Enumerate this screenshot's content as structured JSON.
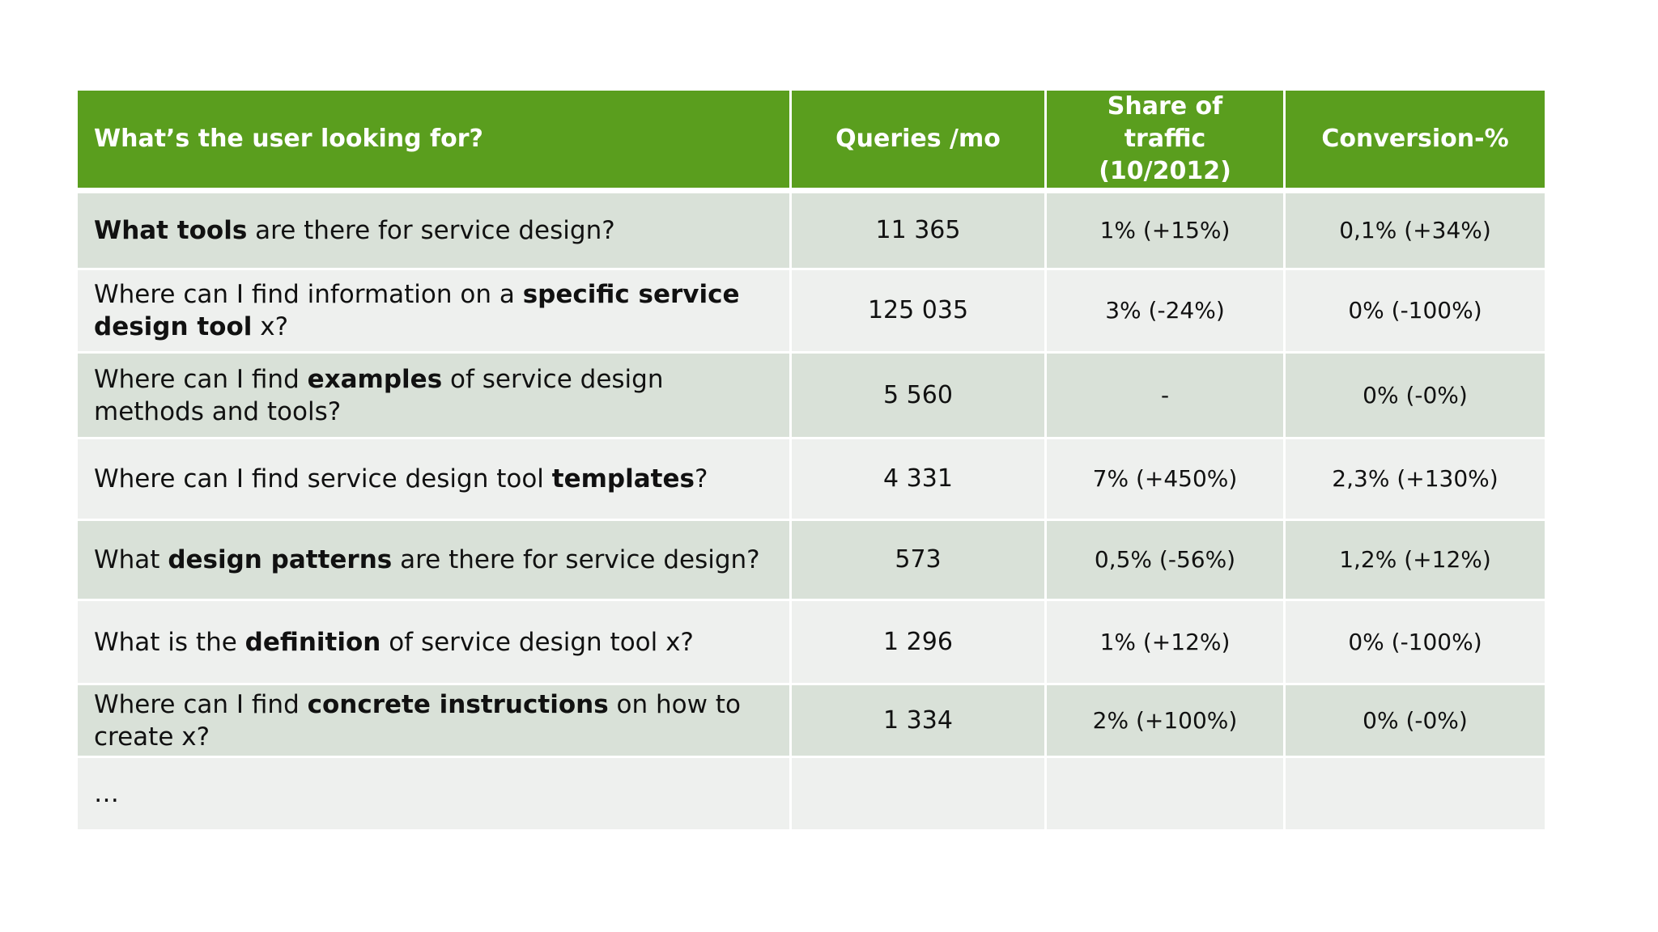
{
  "colors": {
    "header_bg": "#5a9e1e",
    "positive": "#4a9a16",
    "negative": "#e0101a",
    "row_dark": "#d9e1d8",
    "row_light": "#eef0ee"
  },
  "table": {
    "headers": {
      "question": "What’s the user looking for?",
      "queries": "Queries /mo",
      "share_line1": "Share of traffic",
      "share_line2": "(10/2012)",
      "conversion": "Conversion-%"
    },
    "rows": [
      {
        "q_pre": "",
        "q_bold": "What tools",
        "q_post": " are there for service design?",
        "queries": "11 365",
        "share": "1% (+15%)",
        "share_status": "positive",
        "conversion": "0,1% (+34%)",
        "conversion_status": "positive"
      },
      {
        "q_pre": "Where can I find information on a ",
        "q_bold": "specific service design tool",
        "q_post": " x?",
        "queries": "125 035",
        "share": "3% (-24%)",
        "share_status": "negative",
        "conversion": "0% (-100%)",
        "conversion_status": "negative"
      },
      {
        "q_pre": "Where can I find ",
        "q_bold": "examples",
        "q_post": " of service design methods and tools?",
        "queries": "5 560",
        "share": "-",
        "share_status": "negative",
        "conversion": "0% (-0%)",
        "conversion_status": "negative"
      },
      {
        "q_pre": "Where can I find service design tool ",
        "q_bold": "templates",
        "q_post": "?",
        "queries": "4 331",
        "share": "7% (+450%)",
        "share_status": "positive",
        "conversion": "2,3% (+130%)",
        "conversion_status": "positive"
      },
      {
        "q_pre": "What ",
        "q_bold": "design patterns",
        "q_post": " are there for service design?",
        "queries": "573",
        "share": "0,5% (-56%)",
        "share_status": "negative",
        "conversion": "1,2% (+12%)",
        "conversion_status": "positive"
      },
      {
        "q_pre": "What is the ",
        "q_bold": "definition",
        "q_post": " of service design tool x?",
        "queries": "1 296",
        "share": "1% (+12%)",
        "share_status": "positive",
        "conversion": "0% (-100%)",
        "conversion_status": "negative"
      },
      {
        "q_pre": "Where can I find ",
        "q_bold": "concrete instructions",
        "q_post": " on how to create x?",
        "queries": "1 334",
        "share": "2% (+100%)",
        "share_status": "positive",
        "conversion": "0% (-0%)",
        "conversion_status": "negative"
      },
      {
        "q_pre": "…",
        "q_bold": "",
        "q_post": "",
        "queries": "",
        "share": "",
        "share_status": "positive",
        "conversion": "",
        "conversion_status": "positive"
      }
    ]
  }
}
